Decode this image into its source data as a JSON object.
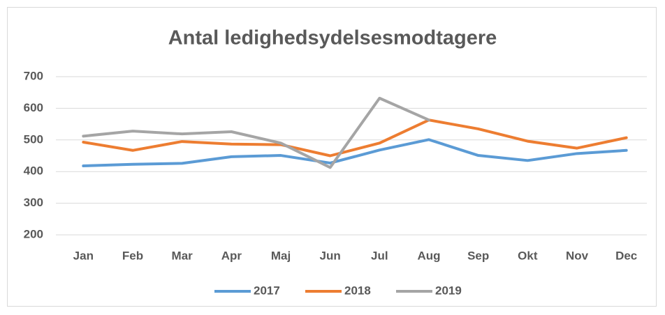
{
  "chart_data": {
    "type": "line",
    "title": "Antal ledighedsydelsesmodtagere",
    "categories": [
      "Jan",
      "Feb",
      "Mar",
      "Apr",
      "Maj",
      "Jun",
      "Jul",
      "Aug",
      "Sep",
      "Okt",
      "Nov",
      "Dec"
    ],
    "series": [
      {
        "name": "2017",
        "color": "#5b9bd5",
        "values": [
          418,
          423,
          426,
          447,
          451,
          427,
          468,
          501,
          451,
          435,
          457,
          467
        ]
      },
      {
        "name": "2018",
        "color": "#ed7d31",
        "values": [
          493,
          467,
          495,
          487,
          485,
          450,
          490,
          563,
          535,
          496,
          474,
          507
        ]
      },
      {
        "name": "2019",
        "color": "#a5a5a5",
        "values": [
          512,
          528,
          519,
          526,
          490,
          413,
          632,
          563,
          null,
          null,
          null,
          null
        ]
      }
    ],
    "ylim": [
      200,
      700
    ],
    "yticks": [
      200,
      300,
      400,
      500,
      600,
      700
    ],
    "grid": true,
    "legend": "bottom"
  }
}
